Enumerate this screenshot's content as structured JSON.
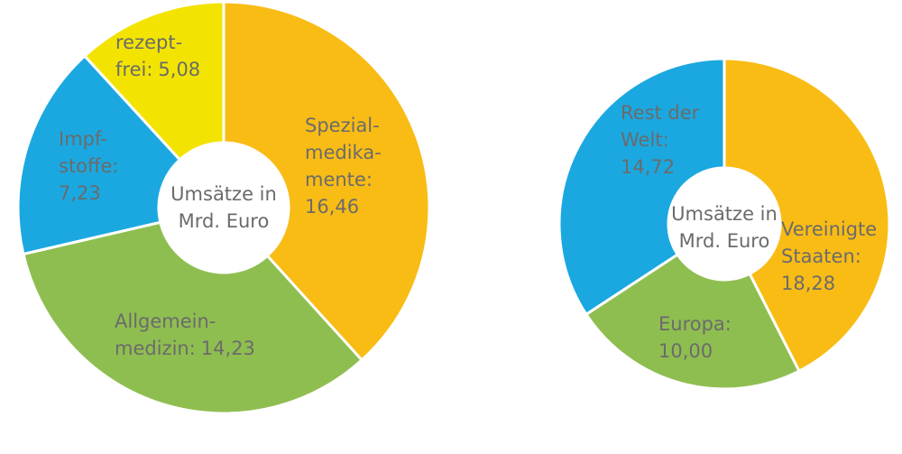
{
  "chart_data": [
    {
      "type": "donut",
      "center_label": "Umsätze in\nMrd. Euro",
      "categories": [
        "Spezial-\nmedika-\nmente:",
        "Allgemein-\nmedizin:",
        "Impf-\nstoffe:",
        "rezept-\nfrei:"
      ],
      "values": [
        16.46,
        14.23,
        7.23,
        5.08
      ],
      "value_labels": [
        "16,46",
        "14,23",
        "7,23",
        "5,08"
      ],
      "colors": [
        "#f9bc15",
        "#8fbe50",
        "#1ba8e0",
        "#f2e400"
      ]
    },
    {
      "type": "donut",
      "center_label": "Umsätze in\nMrd. Euro",
      "categories": [
        "Vereinigte\nStaaten:",
        "Europa:",
        "Rest der\nWelt:"
      ],
      "values": [
        18.28,
        10.0,
        14.72
      ],
      "value_labels": [
        "18,28",
        "10,00",
        "14,72"
      ],
      "colors": [
        "#f9bc15",
        "#8fbe50",
        "#1ba8e0"
      ]
    }
  ]
}
